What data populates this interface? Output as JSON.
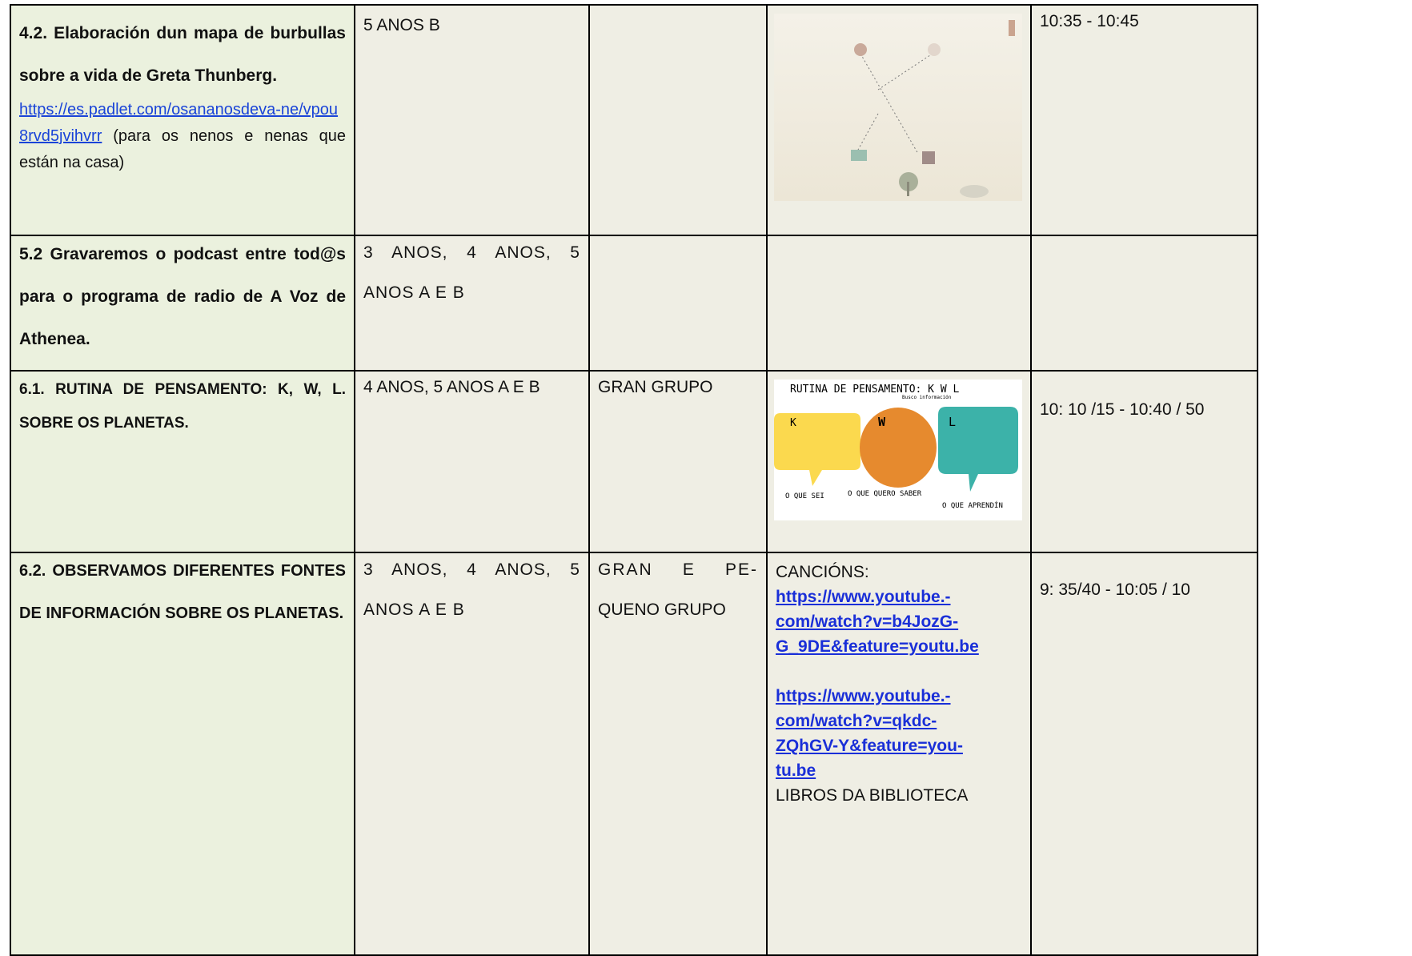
{
  "table": {
    "rows": [
      {
        "activity": {
          "title": "4.2. Elaboración dun mapa de burbullas sobre a vida de Greta Thunberg.",
          "link": "https://es.padlet.com/osananosdeva-ne/vpou8rvd5jvihvrr",
          "note": "(para os nenos e nenas que están na casa)"
        },
        "groups": "5 ANOS B",
        "time": "10:35 -  10:45"
      },
      {
        "activity": {
          "title": "5.2 Gravaremos o podcast entre tod@s para o programa de radio de A Voz de Athenea."
        },
        "groups": "3 ANOS, 4 ANOS, 5 ANOS A E B"
      },
      {
        "activity": {
          "title": "6.1. RUTINA DE PENSAMENTO: K, W, L. SOBRE OS PLANETAS."
        },
        "groups": "4 ANOS, 5 ANOS A E B",
        "grouping": "GRAN GRUPO",
        "image": {
          "title": "RUTINA DE PENSAMENTO: K W L",
          "k": "K",
          "w": "W",
          "l": "L",
          "search": "Busco información",
          "k_caption": "O QUE SEI",
          "w_caption": "O QUE QUERO SABER",
          "l_caption": "O QUE APRENDÍN"
        },
        "time": "10: 10 /15 - 10:40 / 50"
      },
      {
        "activity": {
          "title": "6.2. OBSERVAMOS DIFERENTES FONTES DE INFORMACIÓN SOBRE OS PLANETAS."
        },
        "groups": "3 ANOS, 4 ANOS, 5 ANOS A E B",
        "grouping": [
          "GRAN E PE-",
          "QUENO GRUPO"
        ],
        "resources": {
          "label": "CANCIÓNS:",
          "links": [
            [
              "https://www.youtube.-",
              "com/watch?v=b4JozG-",
              "G_9DE&feature=youtu.be"
            ],
            [
              "https://www.youtube.-",
              "com/watch?v=qkdc-",
              "ZQhGV-Y&feature=you-",
              "tu.be"
            ]
          ],
          "books": "LIBROS DA BIBLIOTECA"
        },
        "time": "9: 35/40 - 10:05 / 10"
      }
    ]
  }
}
